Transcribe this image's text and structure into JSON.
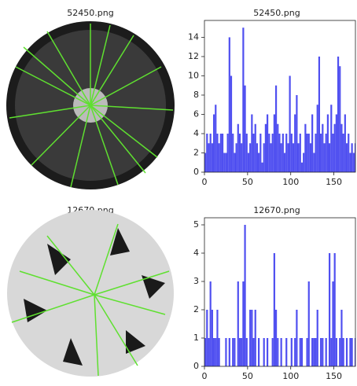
{
  "images": [
    {
      "title": "52450.png"
    },
    {
      "title": "12670.png"
    }
  ],
  "chart_data": [
    {
      "type": "histogram",
      "title": "52450.png",
      "color": "#4f4ff0",
      "bins": [
        0,
        2,
        4,
        6,
        8,
        10,
        12,
        14,
        16,
        18,
        20,
        22,
        24,
        26,
        28,
        30,
        32,
        34,
        36,
        38,
        40,
        42,
        44,
        46,
        48,
        50,
        52,
        54,
        56,
        58,
        60,
        62,
        64,
        66,
        68,
        70,
        72,
        74,
        76,
        78,
        80,
        82,
        84,
        86,
        88,
        90,
        92,
        94,
        96,
        98,
        100,
        102,
        104,
        106,
        108,
        110,
        112,
        114,
        116,
        118,
        120,
        122,
        124,
        126,
        128,
        130,
        132,
        134,
        136,
        138,
        140,
        142,
        144,
        146,
        148,
        150,
        152,
        154,
        156,
        158,
        160,
        162,
        164,
        166,
        168,
        170,
        172,
        174,
        176
      ],
      "values": [
        2,
        4,
        3,
        4,
        3,
        6,
        7,
        4,
        3,
        4,
        4,
        2,
        2,
        4,
        14,
        10,
        4,
        2,
        3,
        5,
        4,
        3,
        15,
        9,
        4,
        2,
        3,
        6,
        4,
        5,
        3,
        2,
        4,
        1,
        3,
        5,
        6,
        4,
        3,
        4,
        6,
        9,
        5,
        4,
        3,
        4,
        2,
        4,
        3,
        10,
        4,
        3,
        6,
        8,
        3,
        4,
        1,
        2,
        5,
        4,
        4,
        3,
        6,
        2,
        4,
        7,
        12,
        4,
        5,
        3,
        4,
        6,
        3,
        7,
        4,
        5,
        6,
        12,
        11,
        5,
        4,
        6,
        3,
        4,
        2,
        3,
        2,
        3
      ],
      "xlim": [
        0,
        175
      ],
      "ylim": [
        0,
        15.75
      ],
      "xticks": [
        0,
        50,
        100,
        150
      ],
      "yticks": [
        0,
        2,
        4,
        6,
        8,
        10,
        12,
        14
      ]
    },
    {
      "type": "histogram",
      "title": "12670.png",
      "color": "#4f4ff0",
      "bins": [
        0,
        2,
        4,
        6,
        8,
        10,
        12,
        14,
        16,
        18,
        20,
        22,
        24,
        26,
        28,
        30,
        32,
        34,
        36,
        38,
        40,
        42,
        44,
        46,
        48,
        50,
        52,
        54,
        56,
        58,
        60,
        62,
        64,
        66,
        68,
        70,
        72,
        74,
        76,
        78,
        80,
        82,
        84,
        86,
        88,
        90,
        92,
        94,
        96,
        98,
        100,
        102,
        104,
        106,
        108,
        110,
        112,
        114,
        116,
        118,
        120,
        122,
        124,
        126,
        128,
        130,
        132,
        134,
        136,
        138,
        140,
        142,
        144,
        146,
        148,
        150,
        152,
        154,
        156,
        158,
        160,
        162,
        164,
        166,
        168,
        170,
        172,
        174,
        176
      ],
      "values": [
        1,
        2,
        1,
        3,
        2,
        1,
        1,
        2,
        1,
        0,
        0,
        0,
        1,
        0,
        1,
        0,
        1,
        1,
        0,
        3,
        1,
        1,
        3,
        5,
        1,
        0,
        2,
        2,
        1,
        2,
        0,
        1,
        0,
        0,
        1,
        0,
        1,
        0,
        0,
        1,
        4,
        2,
        1,
        0,
        1,
        0,
        0,
        1,
        0,
        0,
        1,
        0,
        1,
        2,
        0,
        1,
        1,
        0,
        0,
        1,
        3,
        0,
        1,
        1,
        1,
        2,
        0,
        1,
        1,
        0,
        1,
        0,
        4,
        1,
        3,
        4,
        1,
        0,
        1,
        2,
        1,
        0,
        1,
        0,
        1,
        1,
        0,
        1
      ],
      "xlim": [
        0,
        175
      ],
      "ylim": [
        0,
        5.25
      ],
      "xticks": [
        0,
        50,
        100,
        150
      ],
      "yticks": [
        0,
        1,
        2,
        3,
        4,
        5
      ]
    }
  ]
}
